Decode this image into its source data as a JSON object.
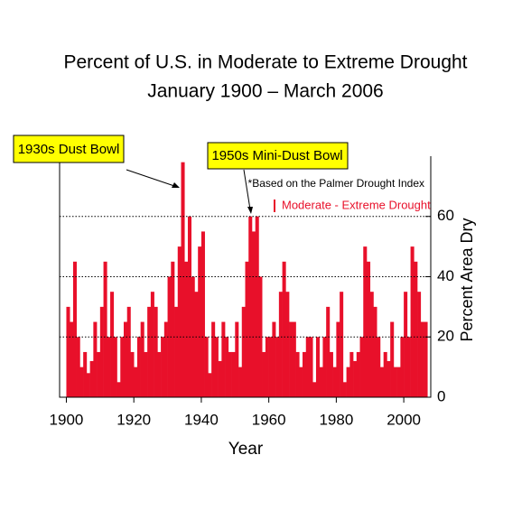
{
  "chart_data": {
    "type": "bar",
    "title": "Percent of U.S. in Moderate to Extreme Drought",
    "subtitle": "January 1900 – March 2006",
    "x_label": "Year",
    "y_label": "Percent Area Dry",
    "note": "*Based on the Palmer Drought Index",
    "annotations": [
      "1930s Dust Bowl",
      "1950s Mini-Dust Bowl"
    ],
    "x": [
      1900,
      1901,
      1902,
      1903,
      1904,
      1905,
      1906,
      1907,
      1908,
      1909,
      1910,
      1911,
      1912,
      1913,
      1914,
      1915,
      1916,
      1917,
      1918,
      1919,
      1920,
      1921,
      1922,
      1923,
      1924,
      1925,
      1926,
      1927,
      1928,
      1929,
      1930,
      1931,
      1932,
      1933,
      1934,
      1935,
      1936,
      1937,
      1938,
      1939,
      1940,
      1941,
      1942,
      1943,
      1944,
      1945,
      1946,
      1947,
      1948,
      1949,
      1950,
      1951,
      1952,
      1953,
      1954,
      1955,
      1956,
      1957,
      1958,
      1959,
      1960,
      1961,
      1962,
      1963,
      1964,
      1965,
      1966,
      1967,
      1968,
      1969,
      1970,
      1971,
      1972,
      1973,
      1974,
      1975,
      1976,
      1977,
      1978,
      1979,
      1980,
      1981,
      1982,
      1983,
      1984,
      1985,
      1986,
      1987,
      1988,
      1989,
      1990,
      1991,
      1992,
      1993,
      1994,
      1995,
      1996,
      1997,
      1998,
      1999,
      2000,
      2001,
      2002,
      2003,
      2004,
      2005,
      2006
    ],
    "series": [
      {
        "name": "Moderate - Extreme Drought",
        "color": "#e8102a",
        "values": [
          30,
          25,
          45,
          20,
          10,
          15,
          8,
          12,
          25,
          15,
          30,
          45,
          20,
          35,
          20,
          5,
          20,
          25,
          30,
          15,
          10,
          20,
          25,
          15,
          30,
          35,
          30,
          15,
          20,
          25,
          40,
          45,
          30,
          50,
          78,
          45,
          60,
          40,
          35,
          50,
          55,
          20,
          8,
          25,
          20,
          12,
          25,
          20,
          15,
          15,
          25,
          10,
          30,
          45,
          60,
          55,
          60,
          40,
          15,
          20,
          20,
          25,
          20,
          35,
          45,
          35,
          25,
          25,
          15,
          10,
          15,
          20,
          20,
          5,
          20,
          10,
          20,
          30,
          15,
          10,
          25,
          35,
          5,
          10,
          15,
          12,
          15,
          20,
          50,
          45,
          35,
          30,
          20,
          10,
          15,
          12,
          25,
          10,
          10,
          20,
          35,
          20,
          50,
          45,
          35,
          25,
          25
        ]
      }
    ],
    "xlim": [
      1898,
      2008
    ],
    "xticks": [
      1900,
      1920,
      1940,
      1960,
      1980,
      2000
    ],
    "ylim": [
      0,
      80
    ],
    "yticks": [
      0,
      20,
      40,
      60
    ],
    "grid": true
  }
}
